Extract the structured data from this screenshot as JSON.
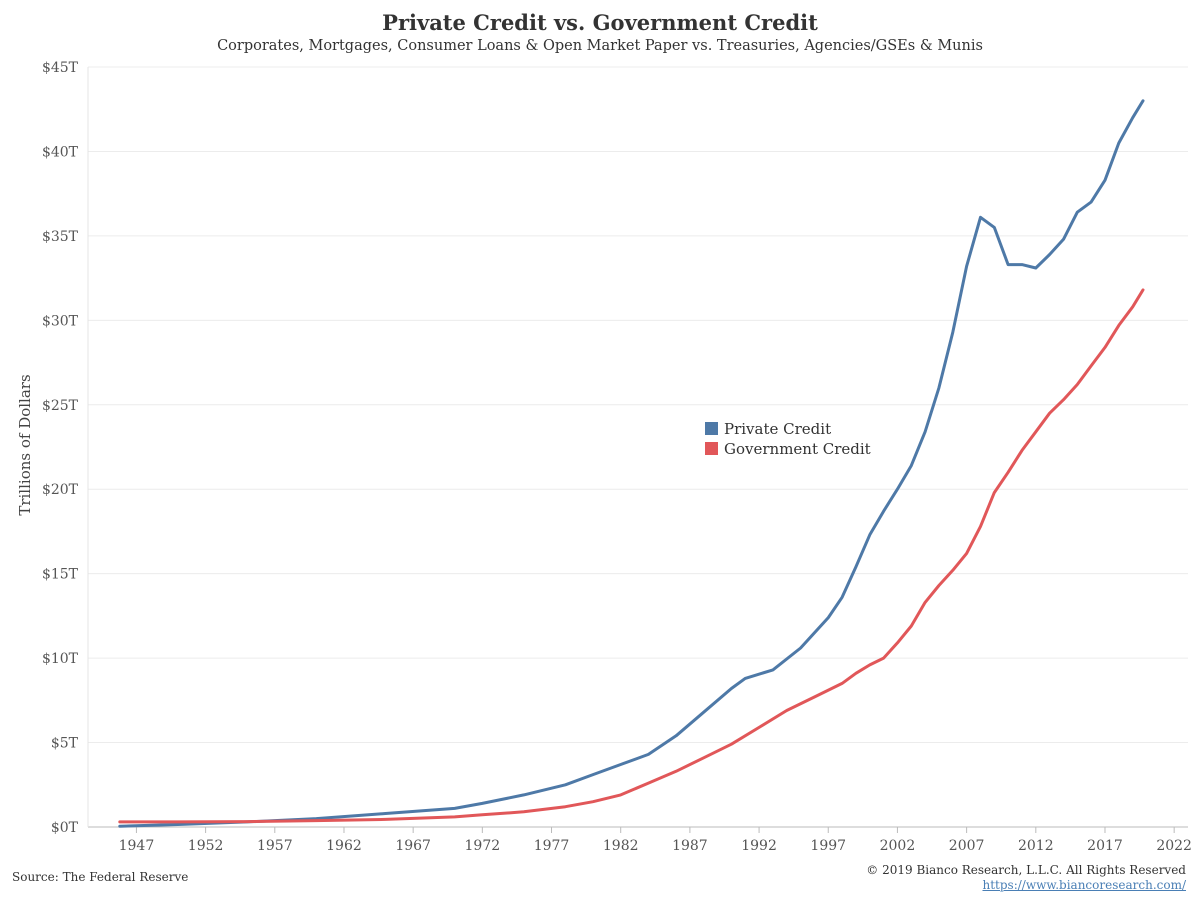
{
  "header": {
    "title": "Private Credit vs. Government Credit",
    "subtitle": "Corporates, Mortgages, Consumer Loans & Open Market Paper vs. Treasuries, Agencies/GSEs & Munis"
  },
  "footer": {
    "source": "Source: The Federal Reserve",
    "copyright": "© 2019 Bianco Research, L.L.C. All Rights Reserved",
    "url": "https://www.biancoresearch.com/"
  },
  "chart_data": {
    "type": "line",
    "ylabel": "Trillions of Dollars",
    "xlim": [
      1943.5,
      2023
    ],
    "ylim": [
      0,
      45
    ],
    "y_ticks": [
      {
        "value": 0,
        "label": "$0T"
      },
      {
        "value": 5,
        "label": "$5T"
      },
      {
        "value": 10,
        "label": "$10T"
      },
      {
        "value": 15,
        "label": "$15T"
      },
      {
        "value": 20,
        "label": "$20T"
      },
      {
        "value": 25,
        "label": "$25T"
      },
      {
        "value": 30,
        "label": "$30T"
      },
      {
        "value": 35,
        "label": "$35T"
      },
      {
        "value": 40,
        "label": "$40T"
      },
      {
        "value": 45,
        "label": "$45T"
      }
    ],
    "x_ticks": [
      {
        "value": 1947,
        "label": "1947"
      },
      {
        "value": 1952,
        "label": "1952"
      },
      {
        "value": 1957,
        "label": "1957"
      },
      {
        "value": 1962,
        "label": "1962"
      },
      {
        "value": 1967,
        "label": "1967"
      },
      {
        "value": 1972,
        "label": "1972"
      },
      {
        "value": 1977,
        "label": "1977"
      },
      {
        "value": 1982,
        "label": "1982"
      },
      {
        "value": 1987,
        "label": "1987"
      },
      {
        "value": 1992,
        "label": "1992"
      },
      {
        "value": 1997,
        "label": "1997"
      },
      {
        "value": 2002,
        "label": "2002"
      },
      {
        "value": 2007,
        "label": "2007"
      },
      {
        "value": 2012,
        "label": "2012"
      },
      {
        "value": 2017,
        "label": "2017"
      },
      {
        "value": 2022,
        "label": "2022"
      }
    ],
    "grid": true,
    "legend_position": "center-right",
    "series": [
      {
        "name": "Private Credit",
        "color": "#4e79a7",
        "points": [
          [
            1945.8,
            0.05
          ],
          [
            1950,
            0.15
          ],
          [
            1955,
            0.3
          ],
          [
            1960,
            0.5
          ],
          [
            1965,
            0.8
          ],
          [
            1970,
            1.1
          ],
          [
            1972,
            1.4
          ],
          [
            1975,
            1.9
          ],
          [
            1978,
            2.5
          ],
          [
            1980,
            3.1
          ],
          [
            1982,
            3.7
          ],
          [
            1984,
            4.3
          ],
          [
            1986,
            5.4
          ],
          [
            1988,
            6.8
          ],
          [
            1990,
            8.2
          ],
          [
            1991,
            8.8
          ],
          [
            1993,
            9.3
          ],
          [
            1995,
            10.6
          ],
          [
            1997,
            12.4
          ],
          [
            1998,
            13.6
          ],
          [
            1999,
            15.4
          ],
          [
            2000,
            17.3
          ],
          [
            2001,
            18.7
          ],
          [
            2002,
            20.0
          ],
          [
            2003,
            21.4
          ],
          [
            2004,
            23.4
          ],
          [
            2005,
            26.0
          ],
          [
            2006,
            29.3
          ],
          [
            2007,
            33.2
          ],
          [
            2008,
            36.1
          ],
          [
            2009,
            35.5
          ],
          [
            2010,
            33.3
          ],
          [
            2011,
            33.3
          ],
          [
            2012,
            33.1
          ],
          [
            2013,
            33.9
          ],
          [
            2014,
            34.8
          ],
          [
            2015,
            36.4
          ],
          [
            2016,
            37.0
          ],
          [
            2017,
            38.3
          ],
          [
            2018,
            40.5
          ],
          [
            2019,
            42.0
          ],
          [
            2019.75,
            43.0
          ]
        ]
      },
      {
        "name": "Government Credit",
        "color": "#e15759",
        "points": [
          [
            1945.8,
            0.3
          ],
          [
            1950,
            0.3
          ],
          [
            1955,
            0.32
          ],
          [
            1960,
            0.38
          ],
          [
            1965,
            0.45
          ],
          [
            1970,
            0.6
          ],
          [
            1972,
            0.72
          ],
          [
            1975,
            0.9
          ],
          [
            1978,
            1.2
          ],
          [
            1980,
            1.5
          ],
          [
            1982,
            1.9
          ],
          [
            1984,
            2.6
          ],
          [
            1986,
            3.3
          ],
          [
            1988,
            4.1
          ],
          [
            1990,
            4.9
          ],
          [
            1992,
            5.9
          ],
          [
            1994,
            6.9
          ],
          [
            1996,
            7.7
          ],
          [
            1998,
            8.5
          ],
          [
            1999,
            9.1
          ],
          [
            2000,
            9.6
          ],
          [
            2001,
            10.0
          ],
          [
            2002,
            10.9
          ],
          [
            2003,
            11.9
          ],
          [
            2004,
            13.3
          ],
          [
            2005,
            14.3
          ],
          [
            2006,
            15.2
          ],
          [
            2007,
            16.2
          ],
          [
            2008,
            17.8
          ],
          [
            2009,
            19.8
          ],
          [
            2010,
            21.0
          ],
          [
            2011,
            22.3
          ],
          [
            2012,
            23.4
          ],
          [
            2013,
            24.5
          ],
          [
            2014,
            25.3
          ],
          [
            2015,
            26.2
          ],
          [
            2016,
            27.3
          ],
          [
            2017,
            28.4
          ],
          [
            2018,
            29.7
          ],
          [
            2019,
            30.8
          ],
          [
            2019.75,
            31.8
          ]
        ]
      }
    ]
  }
}
